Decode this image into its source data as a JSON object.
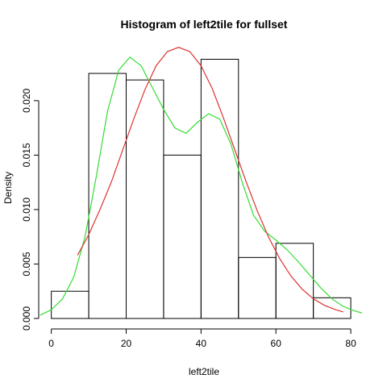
{
  "chart_data": {
    "type": "histogram",
    "title": "Histogram of left2tile for fullset",
    "xlabel": "left2tile",
    "ylabel": "Density",
    "xlim": [
      -1,
      83
    ],
    "ylim": [
      0,
      0.0248
    ],
    "x_ticks": [
      0,
      20,
      40,
      60,
      80
    ],
    "y_ticks": [
      0.0,
      0.005,
      0.01,
      0.015,
      0.02
    ],
    "y_tick_labels": [
      "0.000",
      "0.005",
      "0.010",
      "0.015",
      "0.020"
    ],
    "bins": [
      {
        "from": 0,
        "to": 10,
        "density": 0.0025
      },
      {
        "from": 10,
        "to": 20,
        "density": 0.0225
      },
      {
        "from": 20,
        "to": 30,
        "density": 0.0219
      },
      {
        "from": 30,
        "to": 40,
        "density": 0.015
      },
      {
        "from": 40,
        "to": 50,
        "density": 0.0238
      },
      {
        "from": 50,
        "to": 60,
        "density": 0.0056
      },
      {
        "from": 60,
        "to": 70,
        "density": 0.0069
      },
      {
        "from": 70,
        "to": 80,
        "density": 0.0019
      }
    ],
    "series": [
      {
        "color": "#33dd33",
        "x": [
          -3,
          0,
          3,
          6,
          9,
          12,
          15,
          18,
          21,
          24,
          27,
          30,
          33,
          36,
          39,
          42,
          45,
          48,
          51,
          54,
          57,
          60,
          63,
          66,
          69,
          72,
          75,
          78,
          81,
          83
        ],
        "y": [
          0.0003,
          0.0008,
          0.0018,
          0.0038,
          0.0075,
          0.013,
          0.019,
          0.0228,
          0.024,
          0.0232,
          0.0212,
          0.0192,
          0.0175,
          0.017,
          0.018,
          0.0188,
          0.0183,
          0.016,
          0.0125,
          0.0095,
          0.008,
          0.0072,
          0.0063,
          0.0052,
          0.004,
          0.0028,
          0.0018,
          0.0011,
          0.0007,
          0.0005
        ]
      },
      {
        "color": "#dd3333",
        "x": [
          7,
          10,
          13,
          16,
          19,
          22,
          25,
          28,
          31,
          34,
          37,
          40,
          43,
          46,
          49,
          52,
          55,
          58,
          61,
          64,
          67,
          70,
          73,
          76,
          78
        ],
        "y": [
          0.0058,
          0.0077,
          0.01,
          0.0125,
          0.0154,
          0.0183,
          0.021,
          0.0232,
          0.0245,
          0.0249,
          0.0245,
          0.0232,
          0.0211,
          0.0184,
          0.0155,
          0.0126,
          0.0099,
          0.0075,
          0.0055,
          0.0039,
          0.0027,
          0.0018,
          0.0012,
          0.0008,
          0.0006
        ]
      }
    ]
  }
}
